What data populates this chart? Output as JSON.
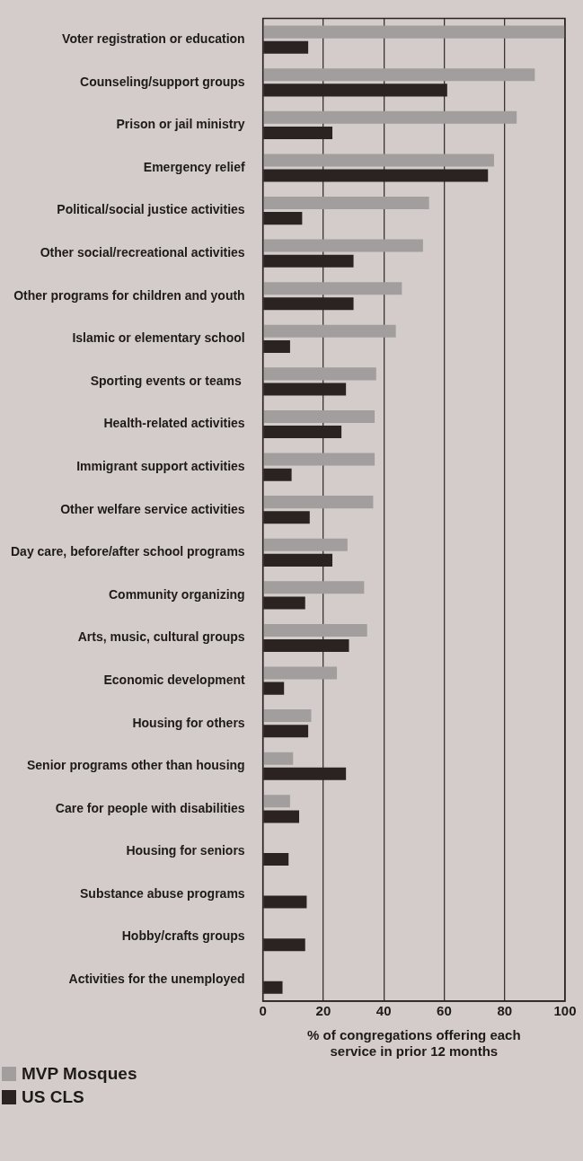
{
  "chart_data": {
    "type": "bar",
    "orientation": "horizontal",
    "xlabel": "% of congregations offering each service in prior 12 months",
    "categories": [
      "Voter registration or education",
      "Counseling/support groups",
      "Prison or jail ministry",
      "Emergency relief",
      "Political/social justice activities",
      "Other social/recreational activities",
      "Other programs for children and youth",
      "Islamic or elementary school",
      "Sporting events or teams ",
      "Health-related activities",
      "Immigrant support activities",
      "Other welfare service activities",
      "Day care, before/after school programs",
      "Community organizing",
      "Arts, music, cultural groups",
      "Economic development",
      "Housing for others",
      "Senior programs other than housing",
      "Care for people with disabilities",
      "Housing for seniors",
      "Substance abuse programs",
      "Hobby/crafts groups",
      "Activities for the unemployed"
    ],
    "series": [
      {
        "name": "MVP Mosques",
        "color": "#a29e9e",
        "values": [
          100,
          90,
          84,
          76.5,
          55,
          53,
          46,
          44,
          37.5,
          37,
          37,
          36.5,
          28,
          33.5,
          34.5,
          24.5,
          16,
          10,
          9,
          0,
          0,
          0,
          0
        ]
      },
      {
        "name": "US CLS",
        "color": "#2b2222",
        "values": [
          15,
          61,
          23,
          74.5,
          13,
          30,
          30,
          9,
          27.5,
          26,
          9.5,
          15.5,
          23,
          14,
          28.5,
          7,
          15,
          27.5,
          12,
          8.5,
          14.5,
          14,
          6.5
        ]
      }
    ],
    "xlim": [
      0,
      100
    ],
    "xticks": [
      0,
      20,
      40,
      60,
      80,
      100
    ],
    "grid": "x",
    "legend": "bottom left"
  }
}
